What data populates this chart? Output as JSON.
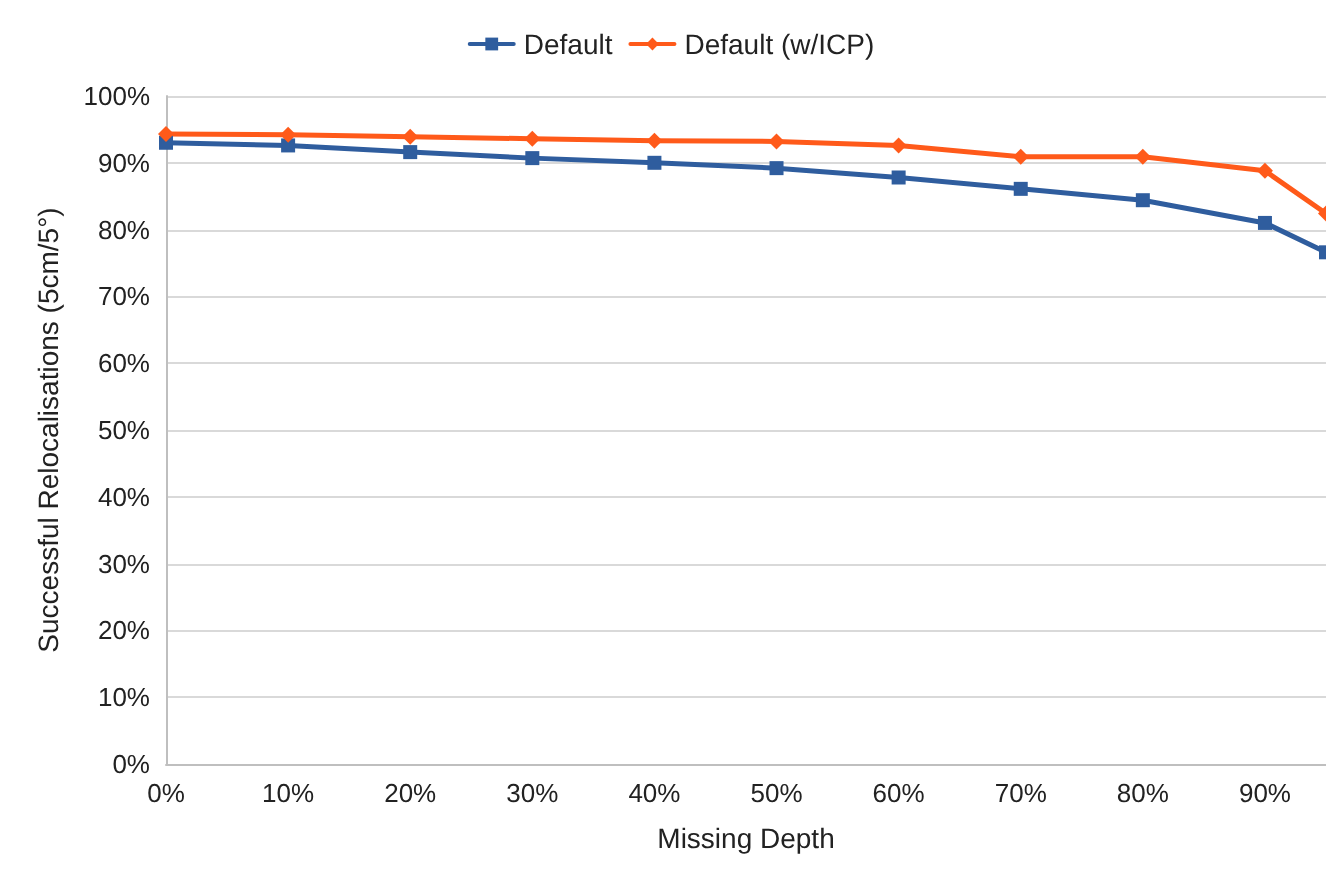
{
  "chart_data": {
    "type": "line",
    "xlabel": "Missing Depth",
    "ylabel": "Successful Relocalisations (5cm/5°)",
    "x": [
      0,
      10,
      20,
      30,
      40,
      50,
      60,
      70,
      80,
      90,
      95
    ],
    "series": [
      {
        "name": "Default",
        "color": "#2f5d9e",
        "marker": "square",
        "values": [
          93.0,
          92.6,
          91.6,
          90.7,
          90.0,
          89.2,
          87.8,
          86.1,
          84.4,
          81.0,
          76.6
        ]
      },
      {
        "name": "Default (w/ICP)",
        "color": "#ff5a1a",
        "marker": "diamond",
        "values": [
          94.3,
          94.2,
          93.9,
          93.6,
          93.3,
          93.2,
          92.6,
          90.9,
          90.9,
          88.8,
          82.4
        ]
      }
    ],
    "xlim": [
      0,
      95
    ],
    "xticks": [
      {
        "value": 0,
        "label": "0%"
      },
      {
        "value": 10,
        "label": "10%"
      },
      {
        "value": 20,
        "label": "20%"
      },
      {
        "value": 30,
        "label": "30%"
      },
      {
        "value": 40,
        "label": "40%"
      },
      {
        "value": 50,
        "label": "50%"
      },
      {
        "value": 60,
        "label": "60%"
      },
      {
        "value": 70,
        "label": "70%"
      },
      {
        "value": 80,
        "label": "80%"
      },
      {
        "value": 90,
        "label": "90%"
      }
    ],
    "ylim": [
      0,
      100
    ],
    "yticks": [
      {
        "value": 0,
        "label": "0%"
      },
      {
        "value": 10,
        "label": "10%"
      },
      {
        "value": 20,
        "label": "20%"
      },
      {
        "value": 30,
        "label": "30%"
      },
      {
        "value": 40,
        "label": "40%"
      },
      {
        "value": 50,
        "label": "50%"
      },
      {
        "value": 60,
        "label": "60%"
      },
      {
        "value": 70,
        "label": "70%"
      },
      {
        "value": 80,
        "label": "80%"
      },
      {
        "value": 90,
        "label": "90%"
      },
      {
        "value": 100,
        "label": "100%"
      }
    ],
    "grid": "y",
    "legend": "top"
  }
}
